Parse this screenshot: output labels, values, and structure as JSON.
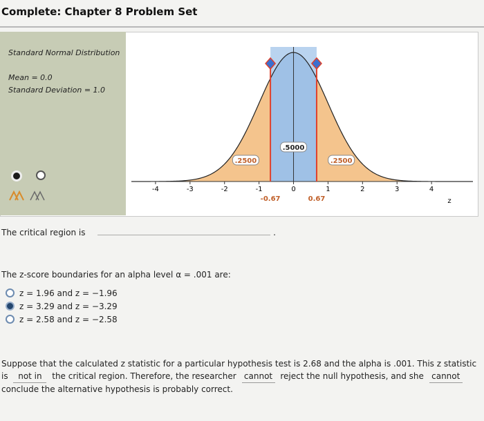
{
  "header": {
    "title": "Complete: Chapter 8 Problem Set"
  },
  "applet": {
    "title": "Standard Normal Distribution",
    "mean_label": "Mean = 0.0",
    "sd_label": "Standard Deviation = 1.0",
    "xlim": [
      -4.7,
      5.2
    ],
    "xticks": [
      -4,
      -3,
      -2,
      -1,
      0,
      1,
      2,
      3,
      4
    ],
    "axis_label": "z",
    "boundaries": [
      {
        "value": -0.67,
        "label": "-0.67"
      },
      {
        "value": 0.67,
        "label": "0.67"
      }
    ],
    "regions": [
      ".2500",
      ".5000",
      ".2500"
    ]
  },
  "question_1": {
    "prompt": "The critical region is"
  },
  "question_2": {
    "prompt": "The z-score boundaries for an alpha level α = .001 are:",
    "options": [
      "z = 1.96 and z = −1.96",
      "z = 3.29 and z = −3.29",
      "z = 2.58 and z = −2.58"
    ],
    "selected": 1
  },
  "question_3": {
    "text_1": "Suppose that the calculated z statistic for a particular hypothesis test is 2.68 and the alpha is .001. This z statistic is",
    "answer_1": "not in",
    "text_2": "the critical region. Therefore, the researcher",
    "answer_2": "cannot",
    "text_3": "reject the null hypothesis, and she",
    "answer_3": "cannot",
    "text_4": "conclude the alternative hypothesis is probably correct."
  }
}
